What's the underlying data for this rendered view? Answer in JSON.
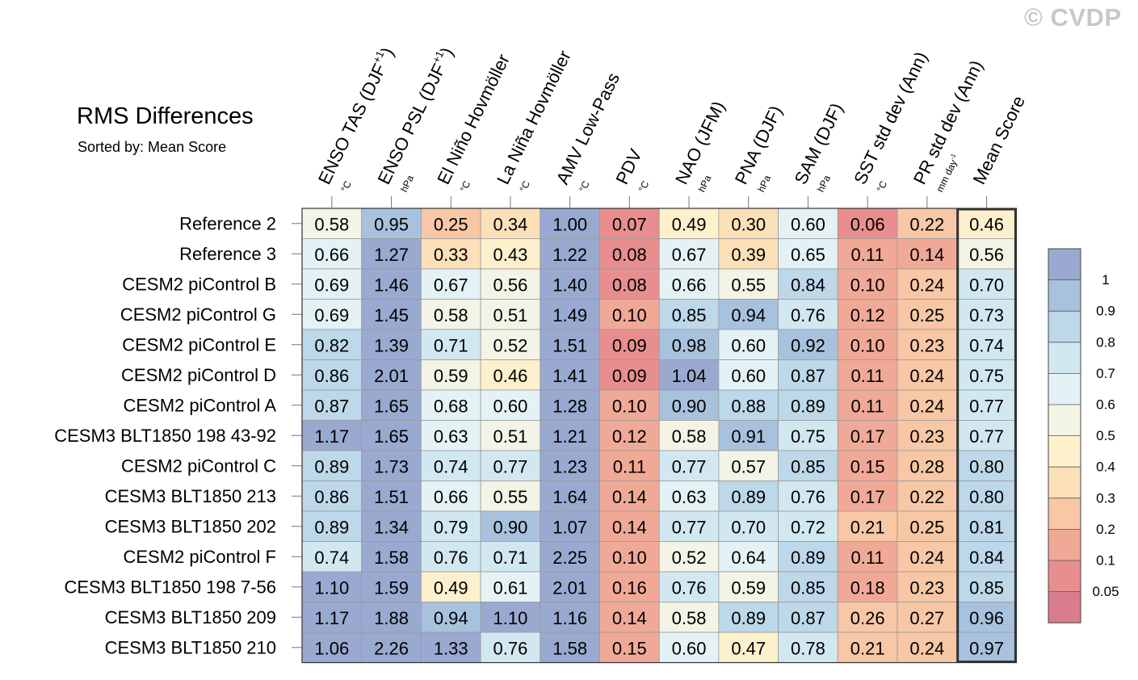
{
  "title": "RMS Differences",
  "subtitle": "Sorted by: Mean Score",
  "watermark": "© CVDP",
  "chart_data": {
    "type": "heatmap",
    "title": "RMS Differences",
    "subtitle": "Sorted by: Mean Score",
    "columns": [
      {
        "label": "ENSO TAS (DJF",
        "sup": "+1",
        "close": ")",
        "unit": "°C"
      },
      {
        "label": "ENSO PSL (DJF",
        "sup": "+1",
        "close": ")",
        "unit": "hPa"
      },
      {
        "label": "El Niño Hovmöller",
        "sup": "",
        "close": "",
        "unit": "°C"
      },
      {
        "label": "La Niña Hovmöller",
        "sup": "",
        "close": "",
        "unit": "°C"
      },
      {
        "label": "AMV Low-Pass",
        "sup": "",
        "close": "",
        "unit": "°C"
      },
      {
        "label": "PDV",
        "sup": "",
        "close": "",
        "unit": "°C"
      },
      {
        "label": "NAO (JFM)",
        "sup": "",
        "close": "",
        "unit": "hPa"
      },
      {
        "label": "PNA (DJF)",
        "sup": "",
        "close": "",
        "unit": "hPa"
      },
      {
        "label": "SAM (DJF)",
        "sup": "",
        "close": "",
        "unit": "hPa"
      },
      {
        "label": "SST std dev (Ann)",
        "sup": "",
        "close": "",
        "unit": "°C"
      },
      {
        "label": "PR std dev (Ann)",
        "sup": "",
        "close": "",
        "unit": "mm day",
        "unit_sup": "-1"
      },
      {
        "label": "Mean Score",
        "sup": "",
        "close": "",
        "unit": ""
      }
    ],
    "rows": [
      {
        "label": "Reference 2",
        "values": [
          "0.58",
          "0.95",
          "0.25",
          "0.34",
          "1.00",
          "0.07",
          "0.49",
          "0.30",
          "0.60",
          "0.06",
          "0.22",
          "0.46"
        ]
      },
      {
        "label": "Reference 3",
        "values": [
          "0.66",
          "1.27",
          "0.33",
          "0.43",
          "1.22",
          "0.08",
          "0.67",
          "0.39",
          "0.65",
          "0.11",
          "0.14",
          "0.56"
        ]
      },
      {
        "label": "CESM2 piControl B",
        "values": [
          "0.69",
          "1.46",
          "0.67",
          "0.56",
          "1.40",
          "0.08",
          "0.66",
          "0.55",
          "0.84",
          "0.10",
          "0.24",
          "0.70"
        ]
      },
      {
        "label": "CESM2 piControl G",
        "values": [
          "0.69",
          "1.45",
          "0.58",
          "0.51",
          "1.49",
          "0.10",
          "0.85",
          "0.94",
          "0.76",
          "0.12",
          "0.25",
          "0.73"
        ]
      },
      {
        "label": "CESM2 piControl E",
        "values": [
          "0.82",
          "1.39",
          "0.71",
          "0.52",
          "1.51",
          "0.09",
          "0.98",
          "0.60",
          "0.92",
          "0.10",
          "0.23",
          "0.74"
        ]
      },
      {
        "label": "CESM2 piControl D",
        "values": [
          "0.86",
          "2.01",
          "0.59",
          "0.46",
          "1.41",
          "0.09",
          "1.04",
          "0.60",
          "0.87",
          "0.11",
          "0.24",
          "0.75"
        ]
      },
      {
        "label": "CESM2 piControl A",
        "values": [
          "0.87",
          "1.65",
          "0.68",
          "0.60",
          "1.28",
          "0.10",
          "0.90",
          "0.88",
          "0.89",
          "0.11",
          "0.24",
          "0.77"
        ]
      },
      {
        "label": "CESM3 BLT1850 198 43-92",
        "values": [
          "1.17",
          "1.65",
          "0.63",
          "0.51",
          "1.21",
          "0.12",
          "0.58",
          "0.91",
          "0.75",
          "0.17",
          "0.23",
          "0.77"
        ]
      },
      {
        "label": "CESM2 piControl C",
        "values": [
          "0.89",
          "1.73",
          "0.74",
          "0.77",
          "1.23",
          "0.11",
          "0.77",
          "0.57",
          "0.85",
          "0.15",
          "0.28",
          "0.80"
        ]
      },
      {
        "label": "CESM3 BLT1850 213",
        "values": [
          "0.86",
          "1.51",
          "0.66",
          "0.55",
          "1.64",
          "0.14",
          "0.63",
          "0.89",
          "0.76",
          "0.17",
          "0.22",
          "0.80"
        ]
      },
      {
        "label": "CESM3 BLT1850 202",
        "values": [
          "0.89",
          "1.34",
          "0.79",
          "0.90",
          "1.07",
          "0.14",
          "0.77",
          "0.70",
          "0.72",
          "0.21",
          "0.25",
          "0.81"
        ]
      },
      {
        "label": "CESM2 piControl F",
        "values": [
          "0.74",
          "1.58",
          "0.76",
          "0.71",
          "2.25",
          "0.10",
          "0.52",
          "0.64",
          "0.89",
          "0.11",
          "0.24",
          "0.84"
        ]
      },
      {
        "label": "CESM3 BLT1850 198 7-56",
        "values": [
          "1.10",
          "1.59",
          "0.49",
          "0.61",
          "2.01",
          "0.16",
          "0.76",
          "0.59",
          "0.85",
          "0.18",
          "0.23",
          "0.85"
        ]
      },
      {
        "label": "CESM3 BLT1850 209",
        "values": [
          "1.17",
          "1.88",
          "0.94",
          "1.10",
          "1.16",
          "0.14",
          "0.58",
          "0.89",
          "0.87",
          "0.26",
          "0.27",
          "0.96"
        ]
      },
      {
        "label": "CESM3 BLT1850 210",
        "values": [
          "1.06",
          "2.26",
          "1.33",
          "0.76",
          "1.58",
          "0.15",
          "0.60",
          "0.47",
          "0.78",
          "0.21",
          "0.24",
          "0.97"
        ]
      }
    ],
    "colorbar": {
      "levels": [
        "1",
        "0.9",
        "0.8",
        "0.7",
        "0.6",
        "0.5",
        "0.4",
        "0.3",
        "0.2",
        "0.1",
        "0.05"
      ],
      "thresholds": [
        1.0,
        0.9,
        0.8,
        0.7,
        0.6,
        0.5,
        0.4,
        0.3,
        0.2,
        0.1,
        0.05
      ],
      "colors": [
        "#9aa9d0",
        "#a8c2de",
        "#bcd8e9",
        "#d2e8f1",
        "#e4f2f6",
        "#f3f3e6",
        "#fdf0cc",
        "#fce0b8",
        "#f8c7a5",
        "#f1a997",
        "#e88e8e",
        "#d97c8c"
      ]
    }
  }
}
